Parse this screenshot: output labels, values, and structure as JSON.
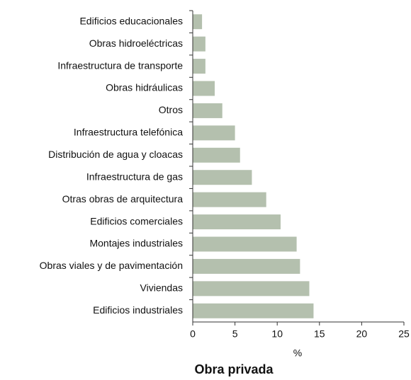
{
  "chart_data": {
    "type": "barh",
    "title": "Obra privada",
    "xlabel": "%",
    "categories": [
      "Edificios educacionales",
      "Obras hidroeléctricas",
      "Infraestructura de transporte",
      "Obras hidráulicas",
      "Otros",
      "Infraestructura telefónica",
      "Distribución de agua y cloacas",
      "Infraestructura de gas",
      "Otras obras de arquitectura",
      "Edificios comerciales",
      "Montajes industriales",
      "Obras viales y de pavimentación",
      "Viviendas",
      "Edificios industriales"
    ],
    "values": [
      1.1,
      1.5,
      1.5,
      2.6,
      3.5,
      5.0,
      5.6,
      7.0,
      8.7,
      10.4,
      12.3,
      12.7,
      13.8,
      14.3
    ],
    "color": "#b4c0ae",
    "xlim": [
      0,
      25
    ],
    "xticks": [
      0,
      5,
      10,
      15,
      20,
      25
    ]
  }
}
